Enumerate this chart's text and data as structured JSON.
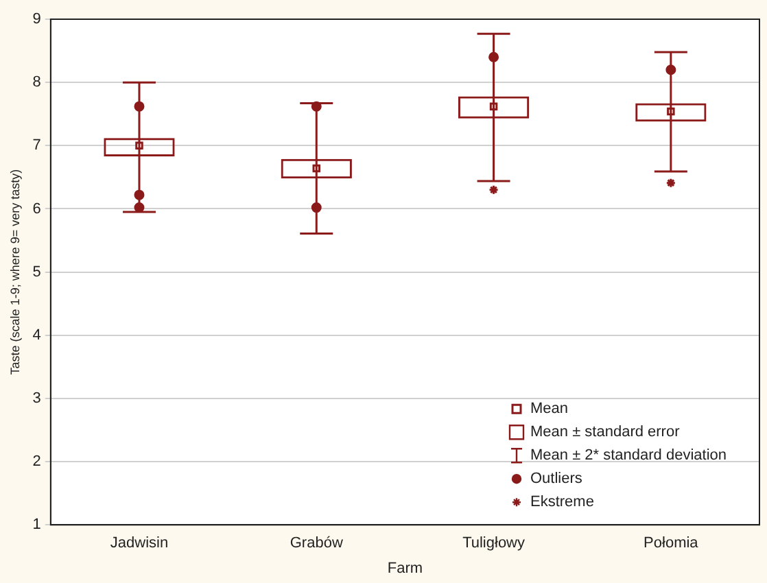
{
  "chart_data": {
    "type": "scatter",
    "xlabel": "Farm",
    "ylabel": "Taste (scale 1-9; where 9= very tasty)",
    "categories": [
      "Jadwisin",
      "Grabów",
      "Tuligłowy",
      "Połomia"
    ],
    "ylim": [
      1,
      9
    ],
    "yticks": [
      1,
      2,
      3,
      4,
      5,
      6,
      7,
      8,
      9
    ],
    "grid": "y",
    "legend": "bottom right",
    "annotations": [
      "Mean ± 2* standard deviation"
    ],
    "series": [
      {
        "name": "Mean",
        "color": "#8b1a1a",
        "marker": "square",
        "values": [
          7.0,
          6.64,
          7.62,
          7.54
        ],
        "errors": [
          [
            5.95,
            8.0
          ],
          [
            5.61,
            7.67
          ],
          [
            6.44,
            8.77
          ],
          [
            6.59,
            8.48
          ]
        ]
      },
      {
        "type": "bar",
        "name": "Mean ± standard error",
        "color": "#8b1a1a",
        "base": [
          6.83,
          6.48,
          7.43,
          7.38
        ],
        "values": [
          0.29,
          0.31,
          0.35,
          0.29
        ]
      },
      {
        "name": "Outliers",
        "color": "#8b1a1a",
        "marker": "circle",
        "x": [
          "Jadwisin",
          "Jadwisin",
          "Jadwisin",
          "Grabów",
          "Grabów",
          "Tuligłowy",
          "Połomia"
        ],
        "values": [
          7.62,
          6.22,
          6.02,
          7.62,
          6.02,
          8.4,
          8.2
        ]
      },
      {
        "name": "Ekstreme",
        "color": "#8b1a1a",
        "marker": "cross",
        "x": [
          "Tuligłowy",
          "Połomia"
        ],
        "values": [
          6.3,
          6.41
        ]
      }
    ]
  }
}
